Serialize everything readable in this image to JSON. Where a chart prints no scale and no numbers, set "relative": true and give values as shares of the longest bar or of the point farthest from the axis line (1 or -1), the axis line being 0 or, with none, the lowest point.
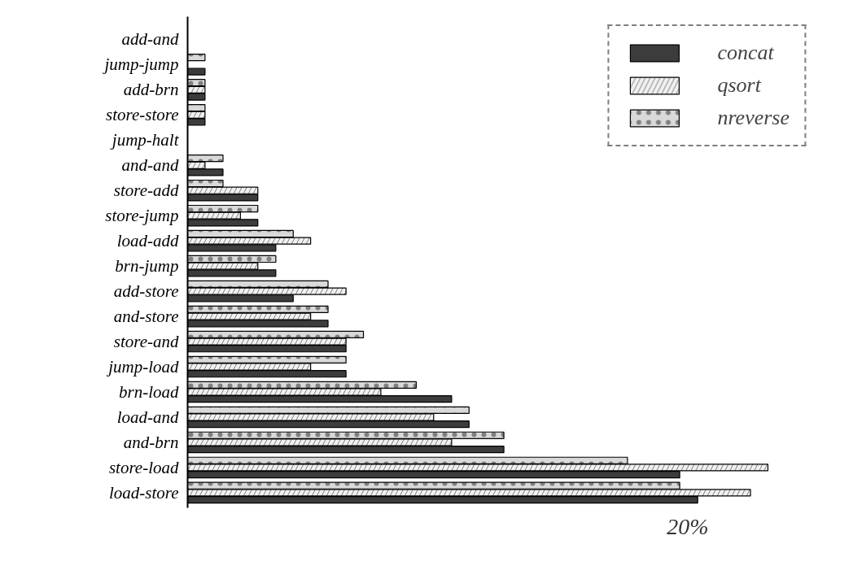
{
  "chart_data": {
    "type": "bar",
    "orientation": "horizontal",
    "relative": true,
    "categories": [
      "add-and",
      "jump-jump",
      "add-brn",
      "store-store",
      "jump-halt",
      "and-and",
      "store-add",
      "store-jump",
      "load-add",
      "brn-jump",
      "add-store",
      "and-store",
      "store-and",
      "jump-load",
      "brn-load",
      "load-and",
      "and-brn",
      "store-load",
      "load-store"
    ],
    "series": [
      {
        "name": "concat",
        "color": "#3c3c3c",
        "values": [
          null,
          0.03,
          0.03,
          0.03,
          null,
          0.061,
          0.121,
          0.121,
          0.152,
          0.152,
          0.182,
          0.242,
          0.273,
          0.273,
          0.455,
          0.485,
          0.545,
          0.848,
          0.879
        ]
      },
      {
        "name": "qsort",
        "color": "#f0f0f0",
        "values": [
          null,
          null,
          0.03,
          0.03,
          null,
          0.03,
          0.121,
          0.091,
          0.212,
          0.121,
          0.273,
          0.212,
          0.273,
          0.212,
          0.333,
          0.424,
          0.455,
          1,
          0.97
        ]
      },
      {
        "name": "nreverse",
        "color": "#d9d9d9",
        "values": [
          null,
          0.03,
          0.03,
          0.03,
          null,
          0.061,
          0.061,
          0.121,
          0.182,
          0.152,
          0.242,
          0.242,
          0.303,
          0.273,
          0.394,
          0.485,
          0.545,
          0.758,
          0.848
        ]
      }
    ],
    "legend": "top right",
    "grid": false,
    "annotations": [
      "20%"
    ]
  }
}
